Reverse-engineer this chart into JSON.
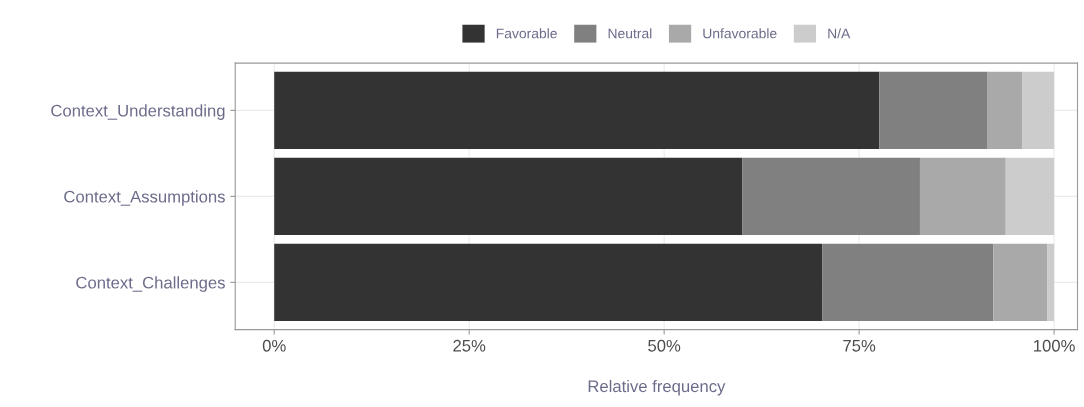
{
  "chart_data": {
    "type": "bar",
    "orientation": "horizontal",
    "stacked": true,
    "categories": [
      "Context_Understanding",
      "Context_Assumptions",
      "Context_Challenges"
    ],
    "series": [
      {
        "name": "Favorable",
        "color": "#333333",
        "values": [
          77.6,
          60.0,
          70.3
        ]
      },
      {
        "name": "Neutral",
        "color": "#808080",
        "values": [
          13.8,
          22.8,
          21.9
        ]
      },
      {
        "name": "Unfavorable",
        "color": "#a9a9a9",
        "values": [
          4.5,
          11.0,
          6.9
        ]
      },
      {
        "name": "N/A",
        "color": "#cccccc",
        "values": [
          4.1,
          6.2,
          0.9
        ]
      }
    ],
    "xlabel": "Relative frequency",
    "xlim": [
      -5,
      103
    ],
    "xticks": [
      {
        "value": 0,
        "label": "0%"
      },
      {
        "value": 25,
        "label": "25%"
      },
      {
        "value": 50,
        "label": "50%"
      },
      {
        "value": 75,
        "label": "75%"
      },
      {
        "value": 100,
        "label": "100%"
      }
    ],
    "grid": true,
    "legend": "top"
  }
}
